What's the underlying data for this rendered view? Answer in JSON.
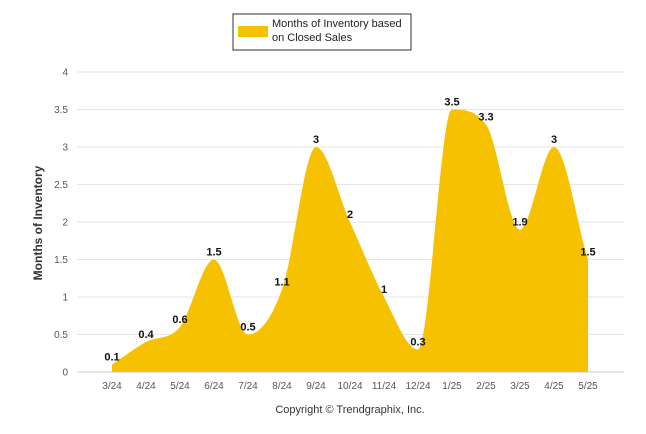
{
  "legend": {
    "label_line1": "Months of Inventory based",
    "label_line2": "on Closed Sales"
  },
  "footer": "Copyright © Trendgraphix, Inc.",
  "colors": {
    "series": "#F5C100",
    "grid": "#E6E6E6",
    "axis": "#CCCCCC"
  },
  "chart_data": {
    "type": "area",
    "title": "",
    "xlabel": "",
    "ylabel": "Months of Inventory",
    "ylim": [
      0,
      4
    ],
    "yticks": [
      "0",
      "0.5",
      "1",
      "1.5",
      "2",
      "2.5",
      "3",
      "3.5",
      "4"
    ],
    "grid": true,
    "legend_position": "top-center",
    "categories": [
      "3/24",
      "4/24",
      "5/24",
      "6/24",
      "7/24",
      "8/24",
      "9/24",
      "10/24",
      "11/24",
      "12/24",
      "1/25",
      "2/25",
      "3/25",
      "4/25",
      "5/25"
    ],
    "series": [
      {
        "name": "Months of Inventory based on Closed Sales",
        "values": [
          0.1,
          0.4,
          0.6,
          1.5,
          0.5,
          1.1,
          3,
          2,
          1,
          0.3,
          3.5,
          3.3,
          1.9,
          3,
          1.5
        ],
        "labels": [
          "0.1",
          "0.4",
          "0.6",
          "1.5",
          "0.5",
          "1.1",
          "3",
          "2",
          "1",
          "0.3",
          "3.5",
          "3.3",
          "1.9",
          "3",
          "1.5"
        ]
      }
    ]
  }
}
